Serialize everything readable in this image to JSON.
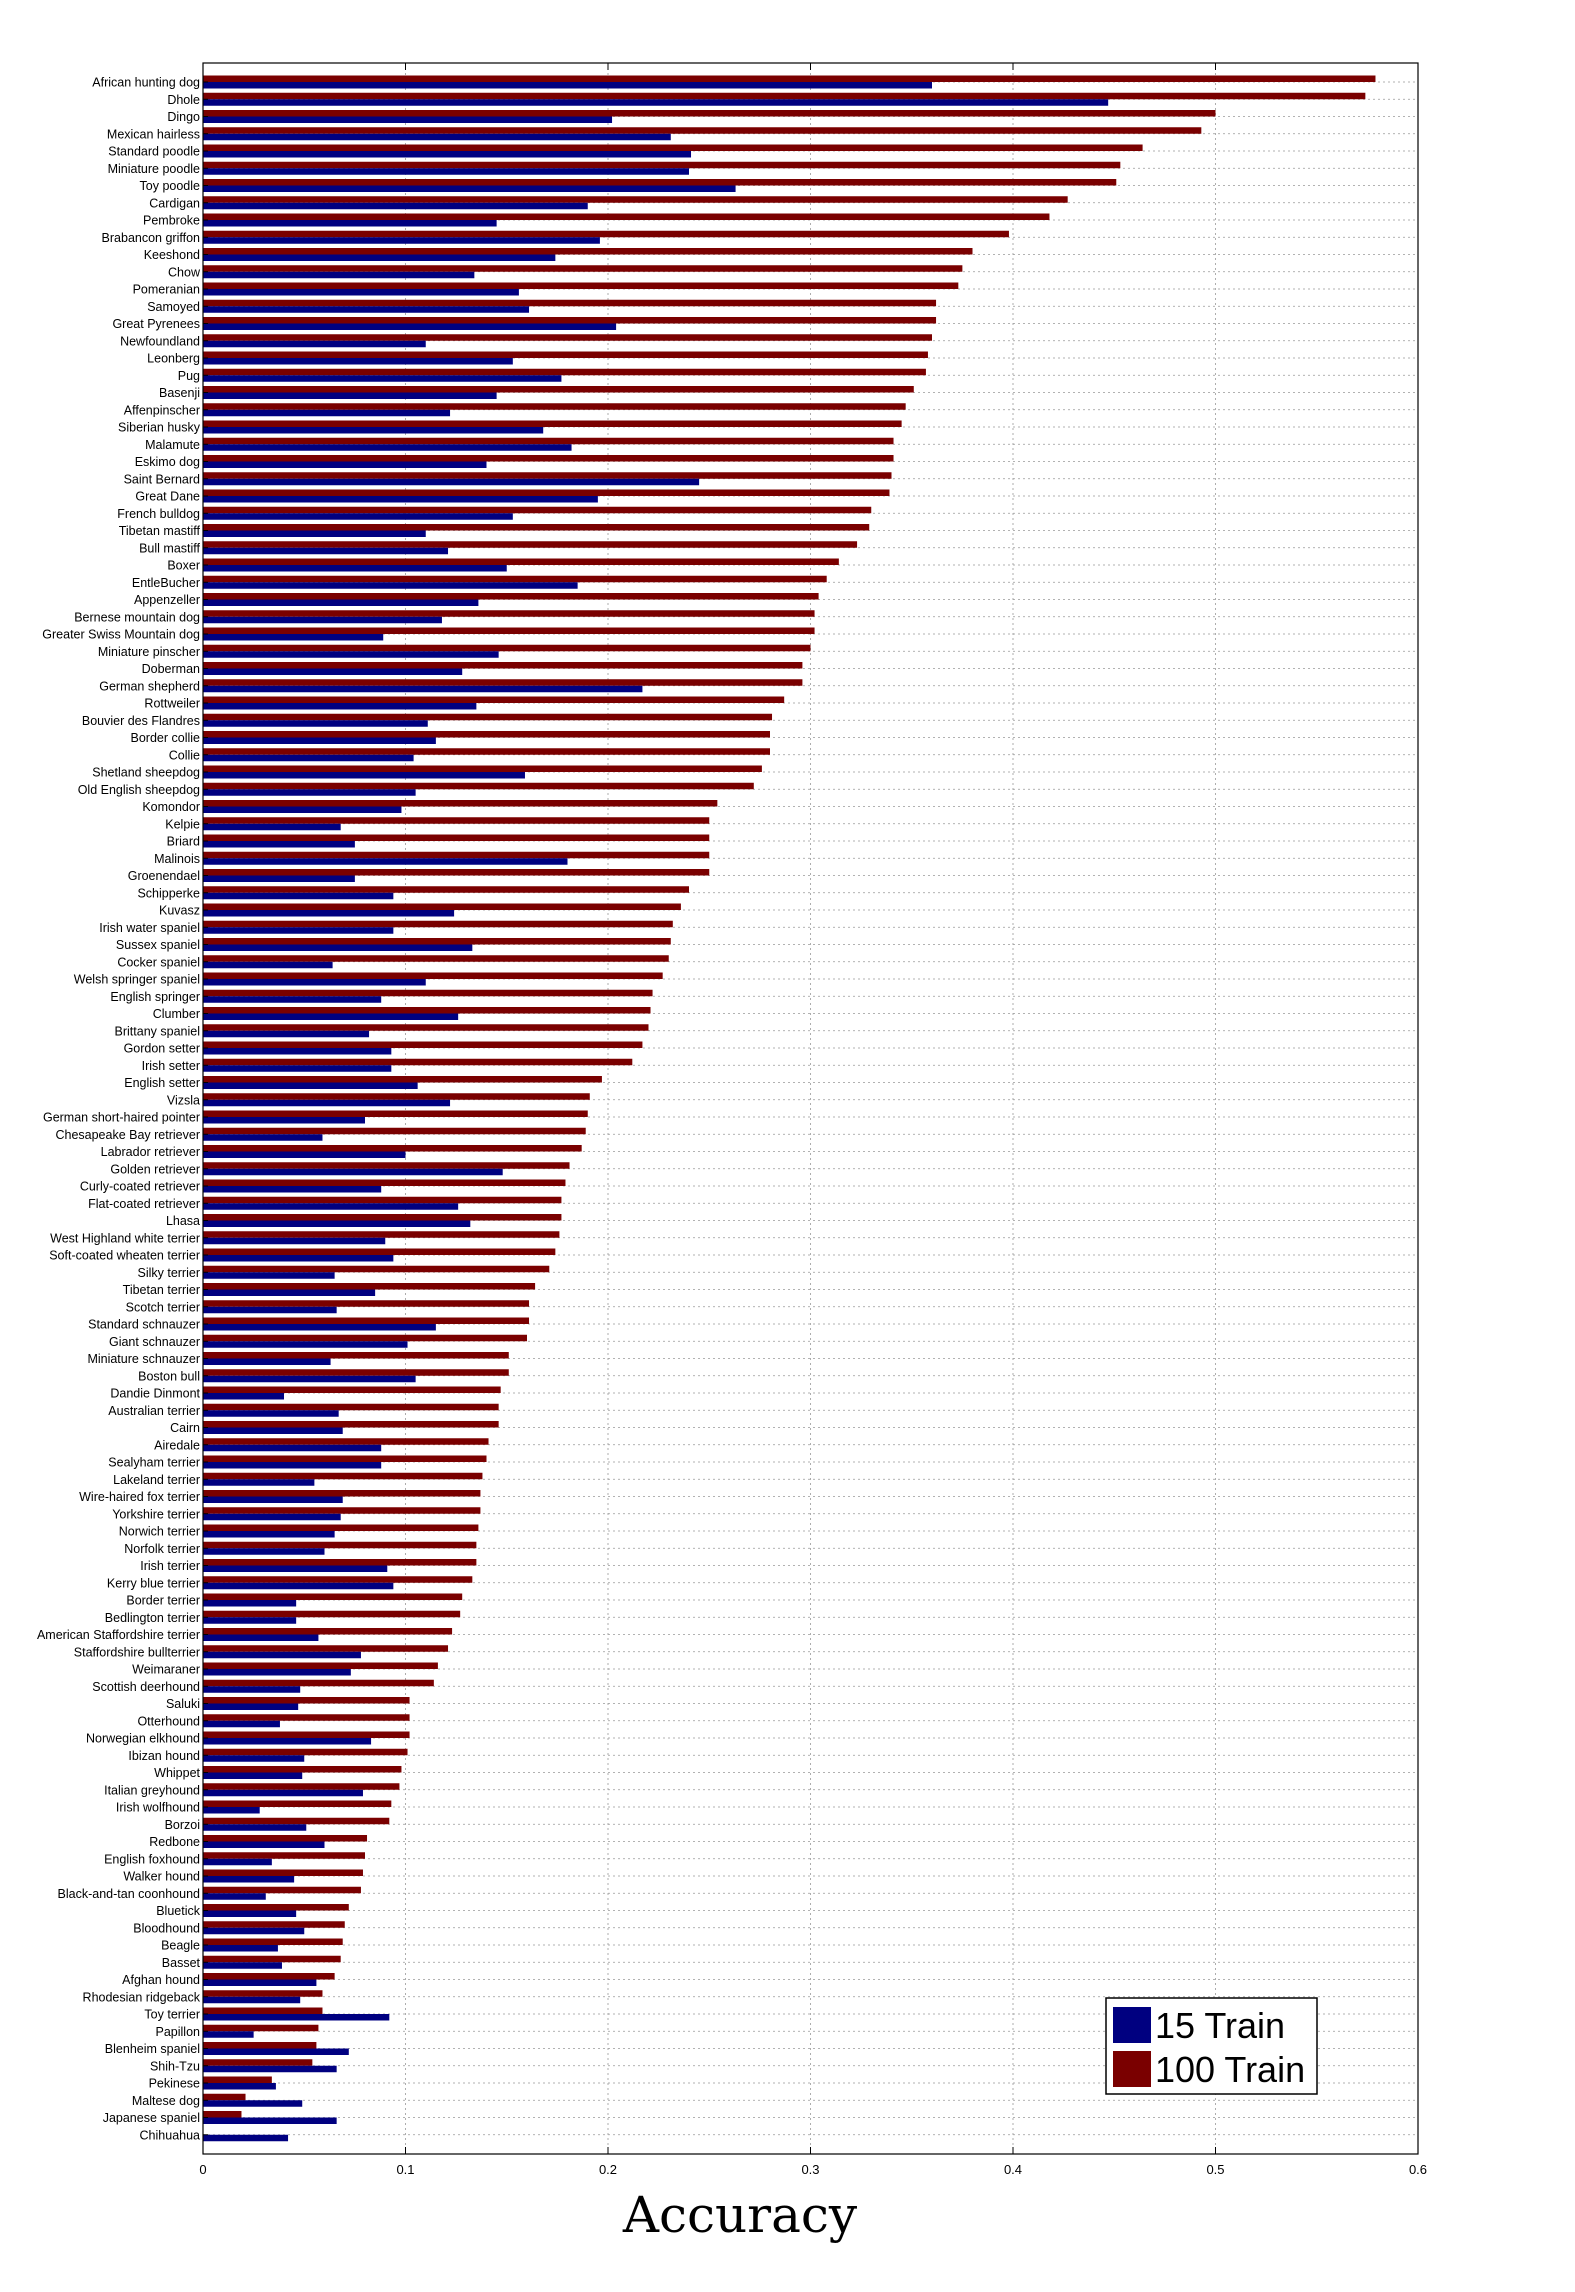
{
  "chart_data": {
    "type": "bar",
    "orientation": "horizontal",
    "xlabel": "Accuracy",
    "ylabel": "",
    "title": "",
    "xlim": [
      0,
      0.6
    ],
    "xticks": [
      "0",
      "0.1",
      "0.2",
      "0.3",
      "0.4",
      "0.5",
      "0.6"
    ],
    "grid": true,
    "legend_position": "bottom-right",
    "categories": [
      "African hunting dog",
      "Dhole",
      "Dingo",
      "Mexican hairless",
      "Standard poodle",
      "Miniature poodle",
      "Toy poodle",
      "Cardigan",
      "Pembroke",
      "Brabancon griffon",
      "Keeshond",
      "Chow",
      "Pomeranian",
      "Samoyed",
      "Great Pyrenees",
      "Newfoundland",
      "Leonberg",
      "Pug",
      "Basenji",
      "Affenpinscher",
      "Siberian husky",
      "Malamute",
      "Eskimo dog",
      "Saint Bernard",
      "Great Dane",
      "French bulldog",
      "Tibetan mastiff",
      "Bull mastiff",
      "Boxer",
      "EntleBucher",
      "Appenzeller",
      "Bernese mountain dog",
      "Greater Swiss Mountain dog",
      "Miniature pinscher",
      "Doberman",
      "German shepherd",
      "Rottweiler",
      "Bouvier des Flandres",
      "Border collie",
      "Collie",
      "Shetland sheepdog",
      "Old English sheepdog",
      "Komondor",
      "Kelpie",
      "Briard",
      "Malinois",
      "Groenendael",
      "Schipperke",
      "Kuvasz",
      "Irish water spaniel",
      "Sussex spaniel",
      "Cocker spaniel",
      "Welsh springer spaniel",
      "English springer",
      "Clumber",
      "Brittany spaniel",
      "Gordon setter",
      "Irish setter",
      "English setter",
      "Vizsla",
      "German short-haired pointer",
      "Chesapeake Bay retriever",
      "Labrador retriever",
      "Golden retriever",
      "Curly-coated retriever",
      "Flat-coated retriever",
      "Lhasa",
      "West Highland white terrier",
      "Soft-coated wheaten terrier",
      "Silky terrier",
      "Tibetan terrier",
      "Scotch terrier",
      "Standard schnauzer",
      "Giant schnauzer",
      "Miniature schnauzer",
      "Boston bull",
      "Dandie Dinmont",
      "Australian terrier",
      "Cairn",
      "Airedale",
      "Sealyham terrier",
      "Lakeland terrier",
      "Wire-haired fox terrier",
      "Yorkshire terrier",
      "Norwich terrier",
      "Norfolk terrier",
      "Irish terrier",
      "Kerry blue terrier",
      "Border terrier",
      "Bedlington terrier",
      "American Staffordshire terrier",
      "Staffordshire bullterrier",
      "Weimaraner",
      "Scottish deerhound",
      "Saluki",
      "Otterhound",
      "Norwegian elkhound",
      "Ibizan hound",
      "Whippet",
      "Italian greyhound",
      "Irish wolfhound",
      "Borzoi",
      "Redbone",
      "English foxhound",
      "Walker hound",
      "Black-and-tan coonhound",
      "Bluetick",
      "Bloodhound",
      "Beagle",
      "Basset",
      "Afghan hound",
      "Rhodesian ridgeback",
      "Toy terrier",
      "Papillon",
      "Blenheim spaniel",
      "Shih-Tzu",
      "Pekinese",
      "Maltese dog",
      "Japanese spaniel",
      "Chihuahua"
    ],
    "series": [
      {
        "name": "100 Train",
        "color": "#7a0000",
        "values": [
          0.579,
          0.574,
          0.5,
          0.493,
          0.464,
          0.453,
          0.451,
          0.427,
          0.418,
          0.398,
          0.38,
          0.375,
          0.373,
          0.362,
          0.362,
          0.36,
          0.358,
          0.357,
          0.351,
          0.347,
          0.345,
          0.341,
          0.341,
          0.34,
          0.339,
          0.33,
          0.329,
          0.323,
          0.314,
          0.308,
          0.304,
          0.302,
          0.302,
          0.3,
          0.296,
          0.296,
          0.287,
          0.281,
          0.28,
          0.28,
          0.276,
          0.272,
          0.254,
          0.25,
          0.25,
          0.25,
          0.25,
          0.24,
          0.236,
          0.232,
          0.231,
          0.23,
          0.227,
          0.222,
          0.221,
          0.22,
          0.217,
          0.212,
          0.197,
          0.191,
          0.19,
          0.189,
          0.187,
          0.181,
          0.179,
          0.177,
          0.177,
          0.176,
          0.174,
          0.171,
          0.164,
          0.161,
          0.161,
          0.16,
          0.151,
          0.151,
          0.147,
          0.146,
          0.146,
          0.141,
          0.14,
          0.138,
          0.137,
          0.137,
          0.136,
          0.135,
          0.135,
          0.133,
          0.128,
          0.127,
          0.123,
          0.121,
          0.116,
          0.114,
          0.102,
          0.102,
          0.102,
          0.101,
          0.098,
          0.097,
          0.093,
          0.092,
          0.081,
          0.08,
          0.079,
          0.078,
          0.072,
          0.07,
          0.069,
          0.068,
          0.065,
          0.059,
          0.059,
          0.057,
          0.056,
          0.054,
          0.034,
          0.021,
          0.019,
          0.0
        ]
      },
      {
        "name": "15 Train",
        "color": "#000080",
        "values": [
          0.36,
          0.447,
          0.202,
          0.231,
          0.241,
          0.24,
          0.263,
          0.19,
          0.145,
          0.196,
          0.174,
          0.134,
          0.156,
          0.161,
          0.204,
          0.11,
          0.153,
          0.177,
          0.145,
          0.122,
          0.168,
          0.182,
          0.14,
          0.245,
          0.195,
          0.153,
          0.11,
          0.121,
          0.15,
          0.185,
          0.136,
          0.118,
          0.089,
          0.146,
          0.128,
          0.217,
          0.135,
          0.111,
          0.115,
          0.104,
          0.159,
          0.105,
          0.098,
          0.068,
          0.075,
          0.18,
          0.075,
          0.094,
          0.124,
          0.094,
          0.133,
          0.064,
          0.11,
          0.088,
          0.126,
          0.082,
          0.093,
          0.093,
          0.106,
          0.122,
          0.08,
          0.059,
          0.1,
          0.148,
          0.088,
          0.126,
          0.132,
          0.09,
          0.094,
          0.065,
          0.085,
          0.066,
          0.115,
          0.101,
          0.063,
          0.105,
          0.04,
          0.067,
          0.069,
          0.088,
          0.088,
          0.055,
          0.069,
          0.068,
          0.065,
          0.06,
          0.091,
          0.094,
          0.046,
          0.046,
          0.057,
          0.078,
          0.073,
          0.048,
          0.047,
          0.038,
          0.083,
          0.05,
          0.049,
          0.079,
          0.028,
          0.051,
          0.06,
          0.034,
          0.045,
          0.031,
          0.046,
          0.05,
          0.037,
          0.039,
          0.056,
          0.048,
          0.092,
          0.025,
          0.072,
          0.066,
          0.036,
          0.049,
          0.066,
          0.042
        ]
      }
    ]
  }
}
